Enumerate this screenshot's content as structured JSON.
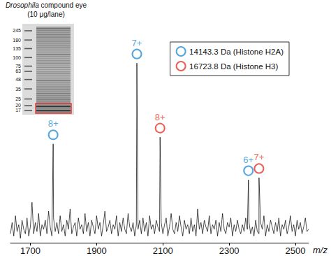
{
  "chart_data": {
    "type": "line",
    "x_label": "m/z",
    "xlim": [
      1640,
      2540
    ],
    "xticks": [
      1700,
      1900,
      2100,
      2300,
      2500
    ],
    "ylim": [
      0,
      100
    ],
    "tick_labels": "x",
    "grid": false,
    "legend": "upper right",
    "color": "#000000",
    "x": [
      1640,
      1645,
      1650,
      1655,
      1660,
      1665,
      1670,
      1675,
      1680,
      1685,
      1690,
      1695,
      1700,
      1705,
      1710,
      1715,
      1720,
      1725,
      1730,
      1735,
      1740,
      1745,
      1750,
      1755,
      1760,
      1765,
      1768.9,
      1770,
      1775,
      1780,
      1785,
      1790,
      1795,
      1800,
      1805,
      1810,
      1815,
      1820,
      1825,
      1830,
      1835,
      1840,
      1845,
      1850,
      1855,
      1860,
      1865,
      1870,
      1875,
      1880,
      1885,
      1890,
      1895,
      1900,
      1905,
      1910,
      1915,
      1920,
      1925,
      1930,
      1935,
      1940,
      1945,
      1950,
      1955,
      1960,
      1965,
      1970,
      1975,
      1980,
      1985,
      1990,
      1995,
      2000,
      2005,
      2010,
      2015,
      2020,
      2021.5,
      2025,
      2030,
      2035,
      2040,
      2045,
      2050,
      2055,
      2060,
      2065,
      2070,
      2075,
      2080,
      2085,
      2090,
      2091.5,
      2095,
      2100,
      2105,
      2110,
      2115,
      2120,
      2125,
      2130,
      2135,
      2140,
      2145,
      2150,
      2155,
      2160,
      2165,
      2170,
      2175,
      2180,
      2185,
      2190,
      2195,
      2200,
      2205,
      2210,
      2215,
      2220,
      2225,
      2230,
      2235,
      2240,
      2245,
      2250,
      2255,
      2260,
      2265,
      2270,
      2275,
      2280,
      2285,
      2290,
      2295,
      2300,
      2305,
      2310,
      2315,
      2320,
      2325,
      2330,
      2335,
      2340,
      2345,
      2350,
      2355,
      2358.2,
      2360,
      2365,
      2370,
      2375,
      2380,
      2385,
      2390,
      2390.1,
      2395,
      2400,
      2405,
      2410,
      2415,
      2420,
      2425,
      2430,
      2435,
      2440,
      2445,
      2450,
      2455,
      2460,
      2465,
      2470,
      2475,
      2480,
      2485,
      2490,
      2495,
      2500,
      2505,
      2510,
      2515,
      2520,
      2525,
      2530,
      2535,
      2540
    ],
    "values": [
      4,
      9,
      3,
      12,
      5,
      8,
      2,
      10,
      6,
      4,
      11,
      3,
      7,
      18,
      4,
      9,
      5,
      13,
      3,
      8,
      6,
      10,
      4,
      14,
      7,
      3,
      44,
      11,
      5,
      9,
      4,
      12,
      5,
      8,
      3,
      10,
      6,
      15,
      4,
      7,
      9,
      3,
      11,
      6,
      8,
      4,
      13,
      5,
      9,
      3,
      10,
      7,
      4,
      12,
      6,
      9,
      3,
      8,
      14,
      5,
      7,
      10,
      4,
      8,
      6,
      12,
      3,
      9,
      5,
      11,
      6,
      4,
      13,
      7,
      5,
      9,
      3,
      8,
      80,
      6,
      10,
      4,
      11,
      5,
      9,
      3,
      12,
      6,
      8,
      4,
      10,
      7,
      5,
      47,
      9,
      4,
      8,
      11,
      3,
      7,
      13,
      6,
      4,
      9,
      5,
      12,
      7,
      3,
      10,
      6,
      8,
      4,
      11,
      5,
      8,
      3,
      15,
      6,
      9,
      4,
      10,
      7,
      5,
      12,
      4,
      8,
      6,
      10,
      3,
      9,
      5,
      13,
      6,
      4,
      9,
      7,
      11,
      3,
      8,
      5,
      10,
      6,
      4,
      8,
      5,
      11,
      6,
      28,
      9,
      4,
      7,
      3,
      10,
      5,
      4,
      29,
      9,
      6,
      12,
      3,
      8,
      5,
      10,
      7,
      4,
      9,
      5,
      11,
      3,
      8,
      6,
      10,
      4,
      7,
      12,
      5,
      8,
      3,
      10,
      6,
      9,
      4,
      7,
      11,
      5,
      6
    ],
    "annotations": [
      {
        "name": "14143.3 Da (Histone H2A)",
        "color": "#2b8fd6",
        "marker": "circle",
        "x": [
          1768.9,
          2021.5,
          2358.2
        ],
        "labels": [
          "8+",
          "7+",
          "6+"
        ]
      },
      {
        "name": "16723.8 Da (Histone H3)",
        "color": "#e23a2e",
        "marker": "circle",
        "x": [
          2091.5,
          2390.1
        ],
        "labels": [
          "8+",
          "7+"
        ]
      }
    ]
  },
  "inset": {
    "title": "Drosophila compound eye",
    "subtitle": "(10 μg/lane)",
    "ladder": [
      245,
      180,
      135,
      100,
      75,
      63,
      48,
      35,
      25,
      20,
      17
    ]
  }
}
